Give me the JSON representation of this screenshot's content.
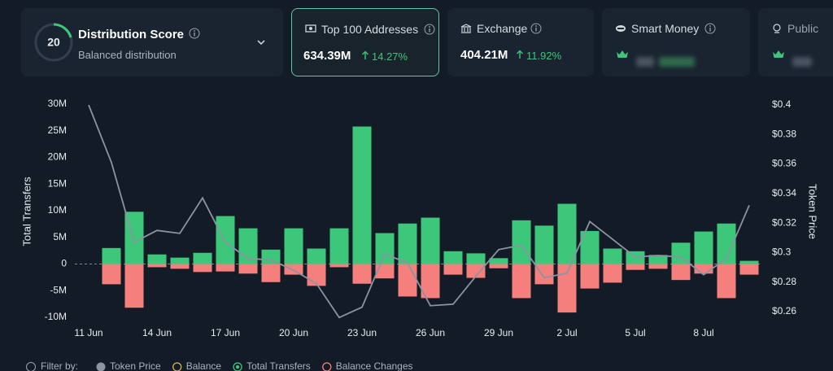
{
  "cards": [
    {
      "score": "20",
      "title": "Distribution Score",
      "subtitle": "Balanced distribution"
    },
    {
      "title": "Top 100 Addresses",
      "value": "634.39M",
      "change": "14.27%"
    },
    {
      "title": "Exchange",
      "value": "404.21M",
      "change": "11.92%"
    },
    {
      "title": "Smart Money"
    },
    {
      "title": "Public"
    }
  ],
  "chart_data": {
    "type": "bar",
    "categories": [
      "11 Jun",
      null,
      null,
      "14 Jun",
      null,
      null,
      "17 Jun",
      null,
      null,
      "20 Jun",
      null,
      null,
      "23 Jun",
      null,
      null,
      "26 Jun",
      null,
      null,
      "29 Jun",
      null,
      null,
      "2 Jul",
      null,
      null,
      "5 Jul",
      null,
      null,
      "8 Jul",
      null,
      null
    ],
    "y_label": "Total Transfers",
    "y2_label": "Token Price",
    "ylim": [
      -10000000,
      30000000
    ],
    "yticks": [
      {
        "value": 30000000,
        "label": "30M"
      },
      {
        "value": 25000000,
        "label": "25M"
      },
      {
        "value": 20000000,
        "label": "20M"
      },
      {
        "value": 15000000,
        "label": "15M"
      },
      {
        "value": 10000000,
        "label": "10M"
      },
      {
        "value": 5000000,
        "label": "5M"
      },
      0,
      {
        "value": -5000000,
        "label": "-5M"
      },
      {
        "value": -10000000,
        "label": "-10M"
      }
    ],
    "y2lim": [
      0.26,
      0.4
    ],
    "y2ticks": [
      {
        "value": 0.4,
        "label": "$0.4"
      },
      {
        "value": 0.38,
        "label": "$0.38"
      },
      {
        "value": 0.36,
        "label": "$0.36"
      },
      {
        "value": 0.34,
        "label": "$0.34"
      },
      {
        "value": 0.32,
        "label": "$0.32"
      },
      {
        "value": 0.3,
        "label": "$0.3"
      },
      {
        "value": 0.28,
        "label": "$0.28"
      },
      {
        "value": 0.26,
        "label": "$0.26"
      }
    ],
    "legend_label": "Filter by:",
    "series": [
      {
        "name": "Token Price",
        "type": "line",
        "axis": "y2",
        "color": "#8b94a1",
        "values": [
          0.4,
          0.361,
          0.307,
          0.315,
          0.313,
          0.337,
          0.307,
          0.296,
          0.295,
          0.288,
          0.279,
          0.256,
          0.263,
          0.299,
          0.293,
          0.264,
          0.265,
          0.284,
          0.302,
          0.305,
          0.283,
          0.286,
          0.321,
          0.309,
          0.297,
          0.298,
          0.297,
          0.285,
          0.296,
          0.332
        ]
      },
      {
        "name": "Balance",
        "type": "line",
        "axis": "y2",
        "color": "#d9b24a",
        "hidden": true
      },
      {
        "name": "Total Transfers",
        "type": "bar",
        "color": "#3cc77b",
        "values": [
          null,
          3000000,
          9800000,
          1800000,
          1200000,
          2100000,
          9000000,
          6700000,
          2700000,
          6700000,
          2900000,
          6700000,
          25800000,
          5800000,
          7600000,
          8700000,
          2400000,
          2000000,
          1100000,
          8200000,
          7200000,
          11300000,
          6200000,
          2900000,
          2400000,
          1700000,
          4000000,
          6100000,
          7600000,
          600000
        ]
      },
      {
        "name": "Balance Changes",
        "type": "bar",
        "color": "#f47f7c",
        "values": [
          null,
          -3800000,
          -8200000,
          -600000,
          -900000,
          -1500000,
          -1400000,
          -1800000,
          -3400000,
          -2000000,
          -4100000,
          -600000,
          -3700000,
          -2700000,
          -6100000,
          -6400000,
          -2000000,
          -2600000,
          -800000,
          -6400000,
          -3800000,
          -9100000,
          -4600000,
          -3500000,
          -1100000,
          -900000,
          -3000000,
          -1800000,
          -6400000,
          -2000000
        ]
      }
    ]
  }
}
